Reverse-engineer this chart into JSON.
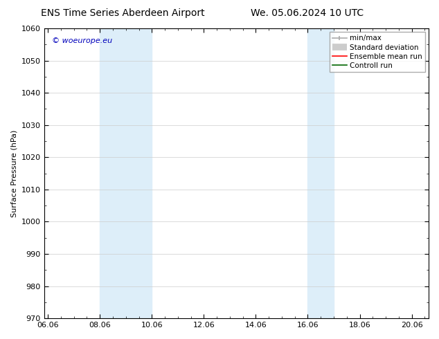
{
  "title_left": "ENS Time Series Aberdeen Airport",
  "title_right": "We. 05.06.2024 10 UTC",
  "ylabel": "Surface Pressure (hPa)",
  "xlabel": "",
  "watermark": "© woeurope.eu",
  "watermark_color": "#0000bb",
  "xlim_left": 5.85,
  "xlim_right": 20.65,
  "ylim_bottom": 970,
  "ylim_top": 1060,
  "yticks": [
    970,
    980,
    990,
    1000,
    1010,
    1020,
    1030,
    1040,
    1050,
    1060
  ],
  "xtick_labels": [
    "06.06",
    "08.06",
    "10.06",
    "12.06",
    "14.06",
    "16.06",
    "18.06",
    "20.06"
  ],
  "xtick_positions": [
    6.0,
    8.0,
    10.0,
    12.0,
    14.0,
    16.0,
    18.0,
    20.0
  ],
  "shaded_regions": [
    {
      "xmin": 8.0,
      "xmax": 10.0,
      "color": "#ddeef9"
    },
    {
      "xmin": 16.0,
      "xmax": 17.0,
      "color": "#ddeef9"
    }
  ],
  "legend_items": [
    {
      "label": "min/max",
      "color": "#aaaaaa",
      "lw": 1.2
    },
    {
      "label": "Standard deviation",
      "color": "#cccccc",
      "lw": 7
    },
    {
      "label": "Ensemble mean run",
      "color": "#ff0000",
      "lw": 1.2
    },
    {
      "label": "Controll run",
      "color": "#006600",
      "lw": 1.2
    }
  ],
  "bg_color": "#ffffff",
  "grid_color": "#cccccc",
  "tick_fontsize": 8,
  "label_fontsize": 8,
  "title_fontsize": 10
}
